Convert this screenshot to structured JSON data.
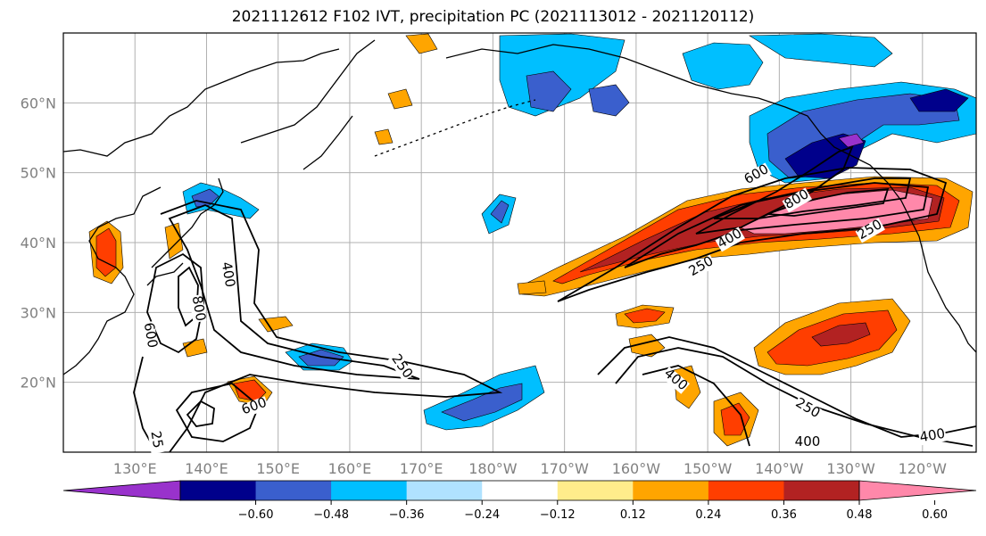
{
  "title": "2021112612 F102 IVT, precipitation PC (2021113012 - 2021120112)",
  "lat_labels": [
    {
      "text": "60°N",
      "lat": 60
    },
    {
      "text": "50°N",
      "lat": 50
    },
    {
      "text": "40°N",
      "lat": 40
    },
    {
      "text": "30°N",
      "lat": 30
    },
    {
      "text": "20°N",
      "lat": 20
    }
  ],
  "lon_labels": [
    {
      "text": "130°E",
      "lon": 130
    },
    {
      "text": "140°E",
      "lon": 140
    },
    {
      "text": "150°E",
      "lon": 150
    },
    {
      "text": "160°E",
      "lon": 160
    },
    {
      "text": "170°E",
      "lon": 170
    },
    {
      "text": "180°W",
      "lon": 180
    },
    {
      "text": "170°W",
      "lon": 190
    },
    {
      "text": "160°W",
      "lon": 200
    },
    {
      "text": "150°W",
      "lon": 210
    },
    {
      "text": "140°W",
      "lon": 220
    },
    {
      "text": "130°W",
      "lon": 230
    },
    {
      "text": "120°W",
      "lon": 240
    }
  ],
  "contour_labels": [
    {
      "text": "250"
    },
    {
      "text": "400"
    },
    {
      "text": "600"
    },
    {
      "text": "800"
    },
    {
      "text": "600"
    },
    {
      "text": "800"
    },
    {
      "text": "400"
    },
    {
      "text": "250"
    },
    {
      "text": "400"
    },
    {
      "text": "250"
    },
    {
      "text": "400"
    },
    {
      "text": "600"
    },
    {
      "text": "250"
    },
    {
      "text": "400"
    },
    {
      "text": "25"
    }
  ],
  "colorbar": {
    "colors": [
      "#9932CC",
      "#00008B",
      "#3A5FCD",
      "#00BFFF",
      "#B0E2FF",
      "#FFFFFF",
      "#FFEC8B",
      "#FFA500",
      "#FF3E00",
      "#B22222",
      "#FF88AA"
    ],
    "tick_labels": [
      "−0.60",
      "−0.48",
      "−0.36",
      "−0.24",
      "−0.12",
      "0.12",
      "0.24",
      "0.36",
      "0.48",
      "0.60"
    ]
  }
}
